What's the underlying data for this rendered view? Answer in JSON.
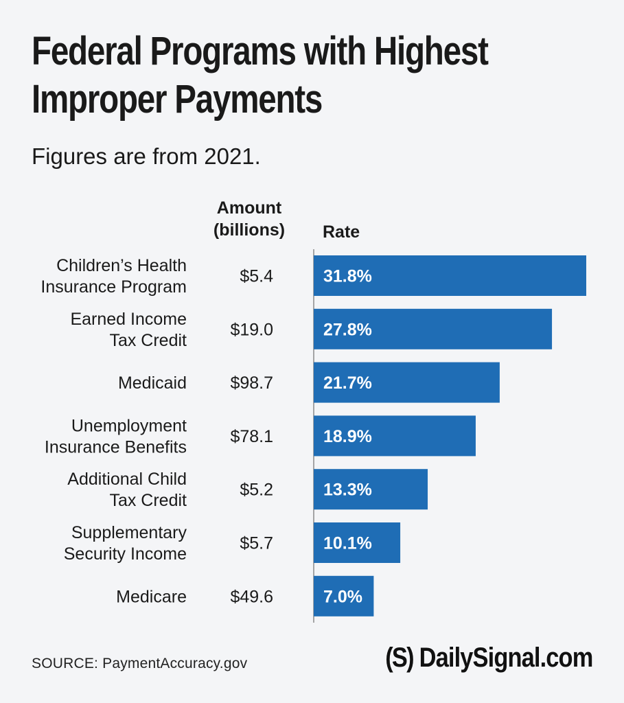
{
  "header": {
    "title_line1": "Federal Programs with Highest",
    "title_line2": "Improper Payments",
    "subtitle": "Figures are from 2021."
  },
  "columns": {
    "amount_line1": "Amount",
    "amount_line2": "(billions)",
    "rate": "Rate"
  },
  "footer": {
    "source": "SOURCE: PaymentAccuracy.gov",
    "brand_mark": "(S)",
    "brand_name": "DailySignal.com"
  },
  "colors": {
    "bar": "#1f6db5",
    "bar_label": "#ffffff",
    "axis": "#8a8a8a",
    "background": "#f4f5f7"
  },
  "chart_data": {
    "type": "bar",
    "orientation": "horizontal",
    "title": "Federal Programs with Highest Improper Payments",
    "subtitle": "Figures are from 2021.",
    "categories": [
      [
        "Children’s Health",
        "Insurance Program"
      ],
      [
        "Earned Income",
        "Tax Credit"
      ],
      [
        "Medicaid"
      ],
      [
        "Unemployment",
        "Insurance Benefits"
      ],
      [
        "Additional Child",
        "Tax Credit"
      ],
      [
        "Supplementary",
        "Security Income"
      ],
      [
        "Medicare"
      ]
    ],
    "amounts": [
      "$5.4",
      "$19.0",
      "$98.7",
      "$78.1",
      "$5.2",
      "$5.7",
      "$49.6"
    ],
    "series": [
      {
        "name": "Rate",
        "values": [
          31.8,
          27.8,
          21.7,
          18.9,
          13.3,
          10.1,
          7.0
        ],
        "labels": [
          "31.8%",
          "27.8%",
          "21.7%",
          "18.9%",
          "13.3%",
          "10.1%",
          "7.0%"
        ]
      }
    ],
    "xlim": [
      0,
      31.8
    ]
  }
}
